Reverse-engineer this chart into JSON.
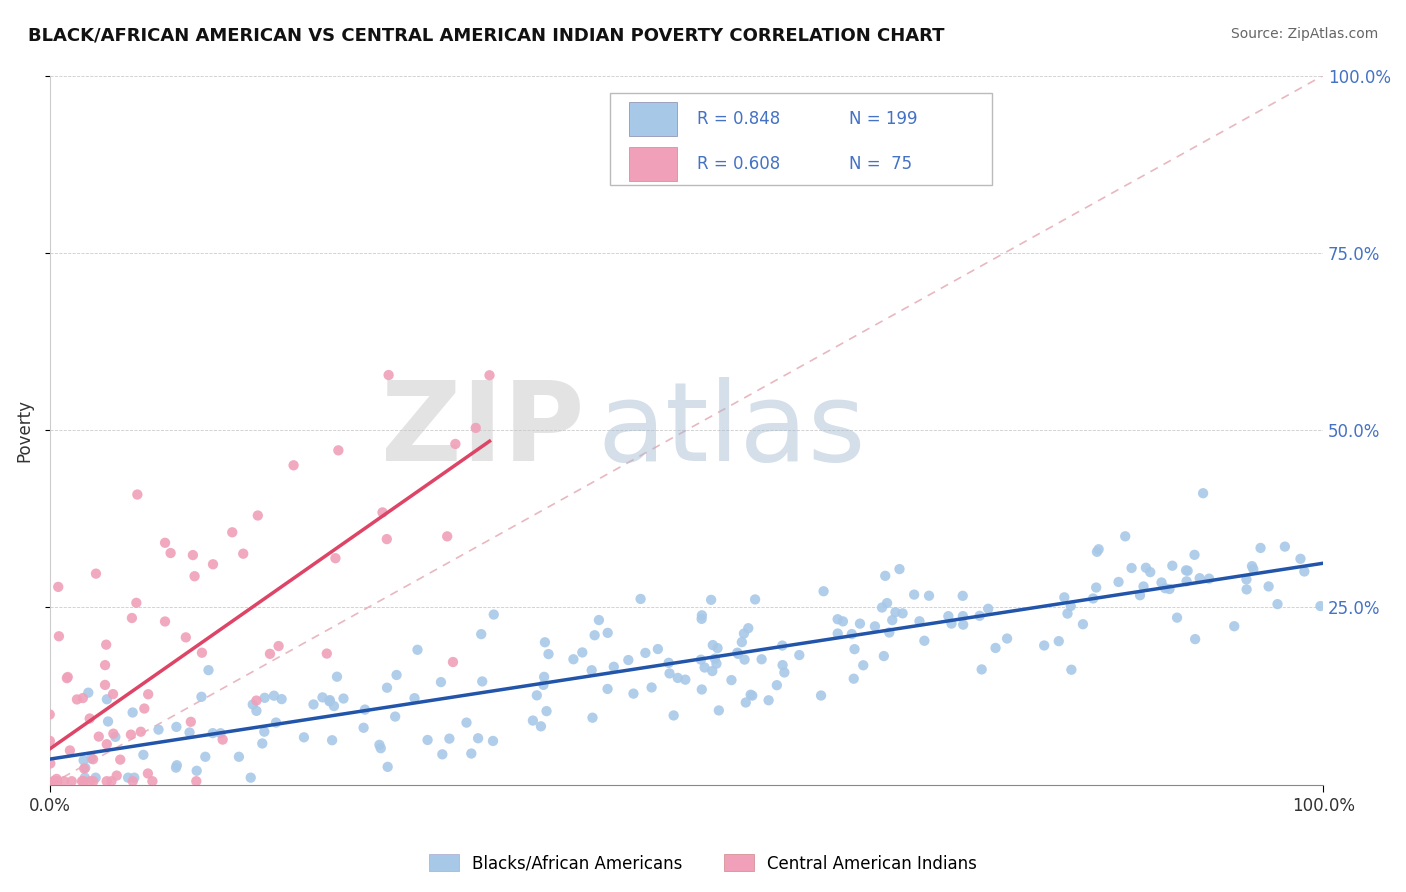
{
  "title": "BLACK/AFRICAN AMERICAN VS CENTRAL AMERICAN INDIAN POVERTY CORRELATION CHART",
  "source": "Source: ZipAtlas.com",
  "ylabel": "Poverty",
  "blue_R": 0.848,
  "blue_N": 199,
  "pink_R": 0.608,
  "pink_N": 75,
  "blue_color": "#a8c8e8",
  "pink_color": "#f0a0b8",
  "blue_line_color": "#2255aa",
  "pink_line_color": "#dd4466",
  "ref_line_color": "#e8b8c0",
  "legend_label_blue": "Blacks/African Americans",
  "legend_label_pink": "Central American Indians",
  "xlim": [
    0,
    1
  ],
  "ylim": [
    0,
    1
  ],
  "watermark": "ZIPatlas",
  "background_color": "#ffffff"
}
